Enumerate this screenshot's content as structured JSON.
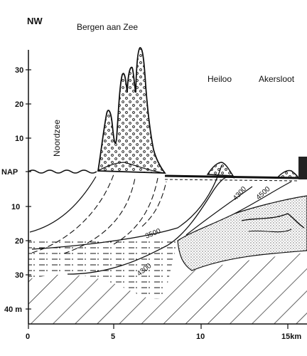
{
  "labels": {
    "direction": "NW",
    "places": [
      "Bergen aan Zee",
      "Heiloo",
      "Akersloot"
    ],
    "sea": "Noordzee",
    "datum": "NAP"
  },
  "y_axis": {
    "ticks": [
      "30",
      "20",
      "10",
      "NAP",
      "10",
      "20",
      "30",
      "40 m"
    ]
  },
  "x_axis": {
    "ticks": [
      "0",
      "5",
      "10",
      "15km"
    ]
  },
  "contours": [
    "3500",
    "4300",
    "4300",
    "4500"
  ]
}
